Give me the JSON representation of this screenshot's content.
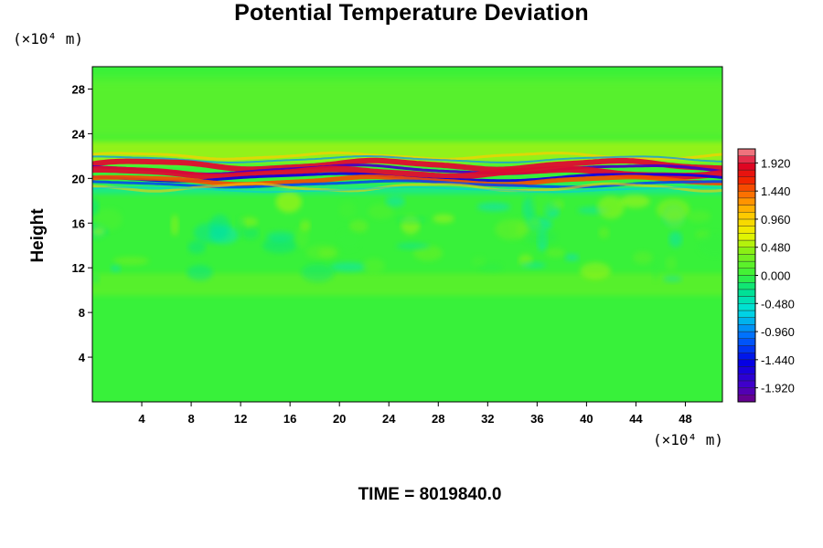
{
  "chart_data": {
    "type": "heatmap",
    "title": "Potential Temperature Deviation",
    "ylabel": "Height",
    "xlabel": "",
    "x_unit": "(×10⁴ m)",
    "y_unit": "(×10⁴ m)",
    "footer": "TIME = 8019840.0",
    "xlim": [
      0,
      51
    ],
    "ylim": [
      0,
      30
    ],
    "x_ticks": [
      4,
      8,
      12,
      16,
      20,
      24,
      28,
      32,
      36,
      40,
      44,
      48
    ],
    "y_ticks": [
      4,
      8,
      12,
      16,
      20,
      24,
      28
    ],
    "colorbar": {
      "range": [
        -2.16,
        2.16
      ],
      "labels": [
        "1.920",
        "1.440",
        "0.960",
        "0.480",
        "0.000",
        "-0.480",
        "-0.960",
        "-1.440",
        "-1.920"
      ],
      "label_values": [
        1.92,
        1.44,
        0.96,
        0.48,
        0.0,
        -0.48,
        -0.96,
        -1.44,
        -1.92
      ]
    },
    "field_summary": {
      "background": 0.0,
      "strong_band_height": [
        19.5,
        21.5
      ],
      "strong_band_extreme": [
        -1.92,
        1.92
      ],
      "weak_wave_region_height": [
        10,
        18
      ]
    }
  }
}
